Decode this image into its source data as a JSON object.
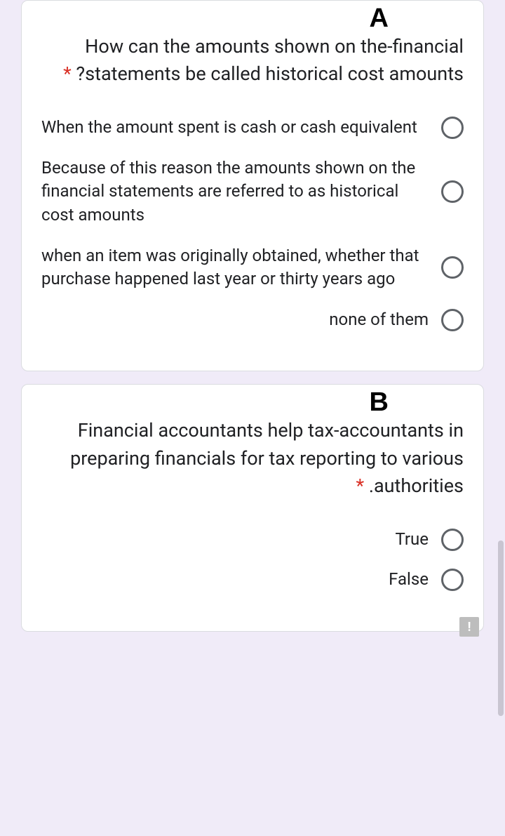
{
  "cardA": {
    "badge": "A",
    "question_main": "How can the amounts shown on the-financial statements be called historical cost amounts?",
    "required": "*",
    "options": [
      "When the amount spent is cash or cash equivalent",
      "Because of this reason the amounts shown on the financial statements are referred to as historical cost amounts",
      "when an item was originally obtained, whether that purchase happened last year or thirty years ago",
      "none of them"
    ]
  },
  "cardB": {
    "badge": "B",
    "question_main": "Financial accountants help tax-accountants in preparing financials for tax reporting to various authorities.",
    "required": "*",
    "options": [
      "True",
      "False"
    ]
  },
  "alert_mark": "!",
  "colors": {
    "page_bg": "#f0ebf8",
    "card_bg": "#ffffff",
    "card_border": "#dadce0",
    "text": "#202124",
    "required": "#d93025",
    "radio_border": "#5f6368",
    "badge_bg": "#bdbdbd"
  }
}
